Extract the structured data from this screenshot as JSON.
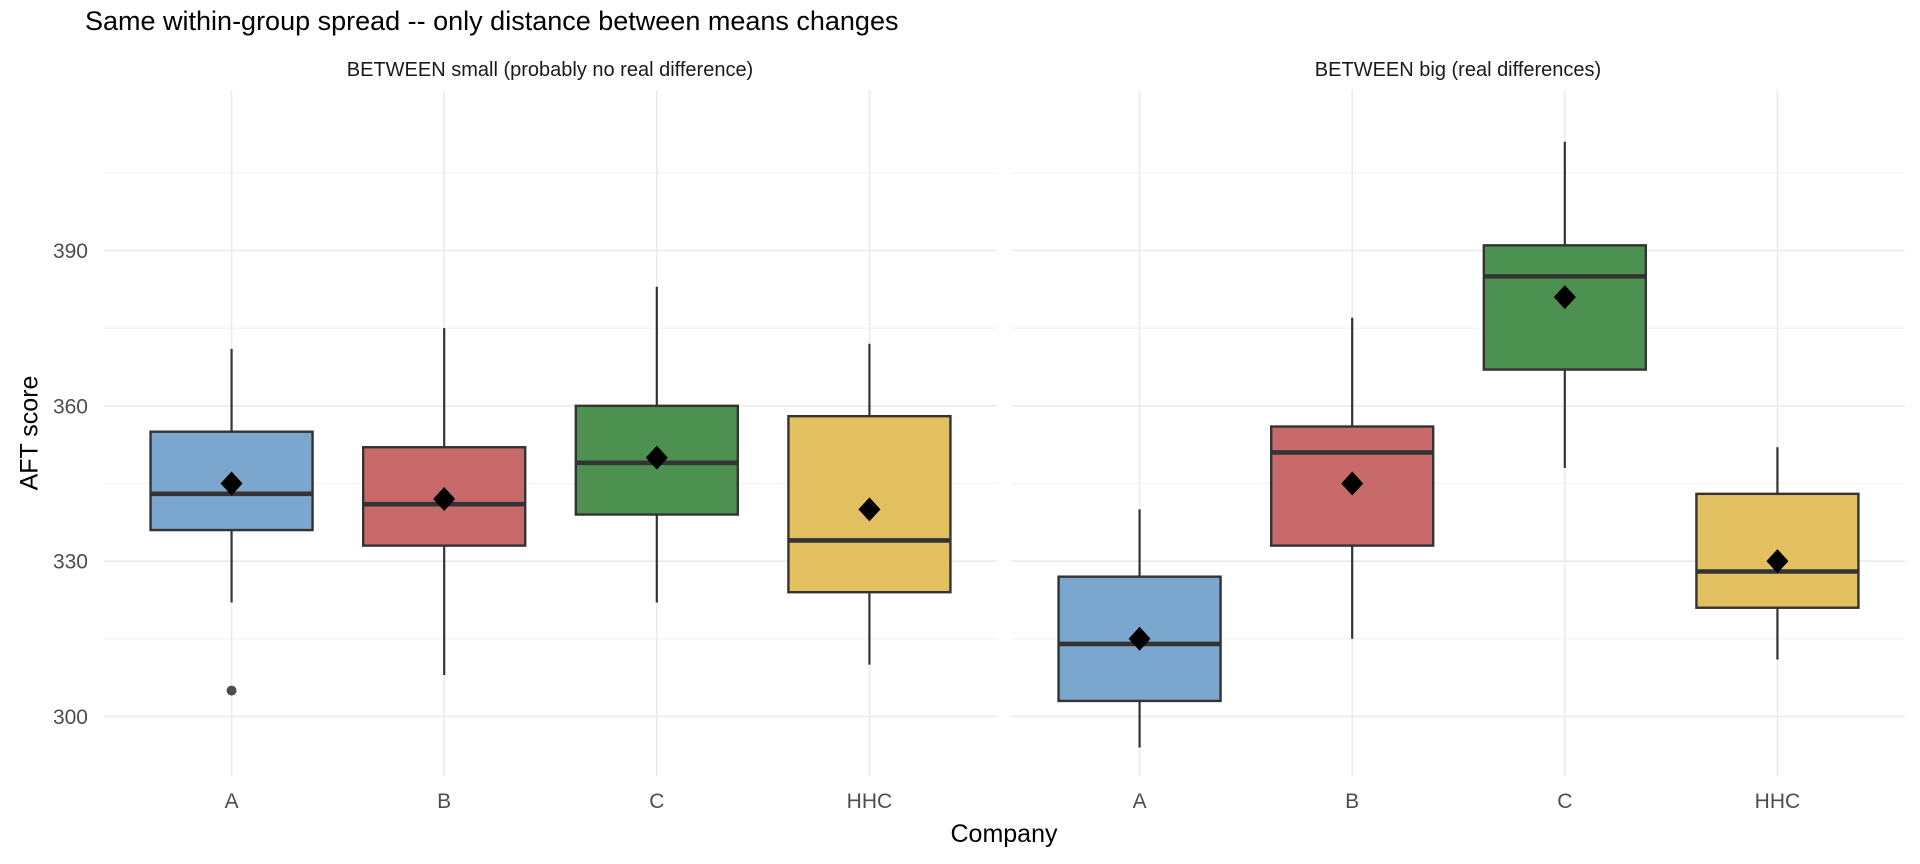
{
  "chart_data": {
    "type": "boxplot",
    "title": "Same within-group spread -- only distance between means changes",
    "xlabel": "Company",
    "ylabel": "AFT score",
    "ylim": [
      288.5,
      421
    ],
    "yticks_major": [
      300,
      330,
      360,
      390
    ],
    "yticks_minor": [
      315,
      345,
      375,
      405
    ],
    "categories": [
      "A",
      "B",
      "C",
      "HHC"
    ],
    "legend": "none",
    "grid": "on",
    "colors": {
      "A": "#7BA6CD",
      "B": "#C96A6A",
      "C": "#4C9150",
      "HHC": "#E3C05F"
    },
    "style": {
      "box_border": "#333333",
      "median_color": "#333333",
      "mean_marker": "diamond",
      "mean_color": "#000000",
      "outlier_color": "#4D4D4D",
      "grid_major": "#EBEBEB",
      "grid_minor": "#F3F3F3",
      "tick_text": "#4D4D4D",
      "panel_bg": "#FFFFFF"
    },
    "facets": [
      {
        "label": "BETWEEN small (probably no real difference)",
        "groups": [
          {
            "company": "A",
            "whisker_low": 322,
            "q1": 336,
            "median": 343,
            "mean": 345,
            "q3": 355,
            "whisker_high": 371,
            "outliers": [
              305
            ]
          },
          {
            "company": "B",
            "whisker_low": 308,
            "q1": 333,
            "median": 341,
            "mean": 342,
            "q3": 352,
            "whisker_high": 375,
            "outliers": []
          },
          {
            "company": "C",
            "whisker_low": 322,
            "q1": 339,
            "median": 349,
            "mean": 350,
            "q3": 360,
            "whisker_high": 383,
            "outliers": []
          },
          {
            "company": "HHC",
            "whisker_low": 310,
            "q1": 324,
            "median": 334,
            "mean": 340,
            "q3": 358,
            "whisker_high": 372,
            "outliers": []
          }
        ]
      },
      {
        "label": "BETWEEN big (real differences)",
        "groups": [
          {
            "company": "A",
            "whisker_low": 294,
            "q1": 303,
            "median": 314,
            "mean": 315,
            "q3": 327,
            "whisker_high": 340,
            "outliers": []
          },
          {
            "company": "B",
            "whisker_low": 315,
            "q1": 333,
            "median": 351,
            "mean": 345,
            "q3": 356,
            "whisker_high": 377,
            "outliers": []
          },
          {
            "company": "C",
            "whisker_low": 348,
            "q1": 367,
            "median": 385,
            "mean": 381,
            "q3": 391,
            "whisker_high": 411,
            "outliers": []
          },
          {
            "company": "HHC",
            "whisker_low": 311,
            "q1": 321,
            "median": 328,
            "mean": 330,
            "q3": 343,
            "whisker_high": 352,
            "outliers": []
          }
        ]
      }
    ]
  }
}
